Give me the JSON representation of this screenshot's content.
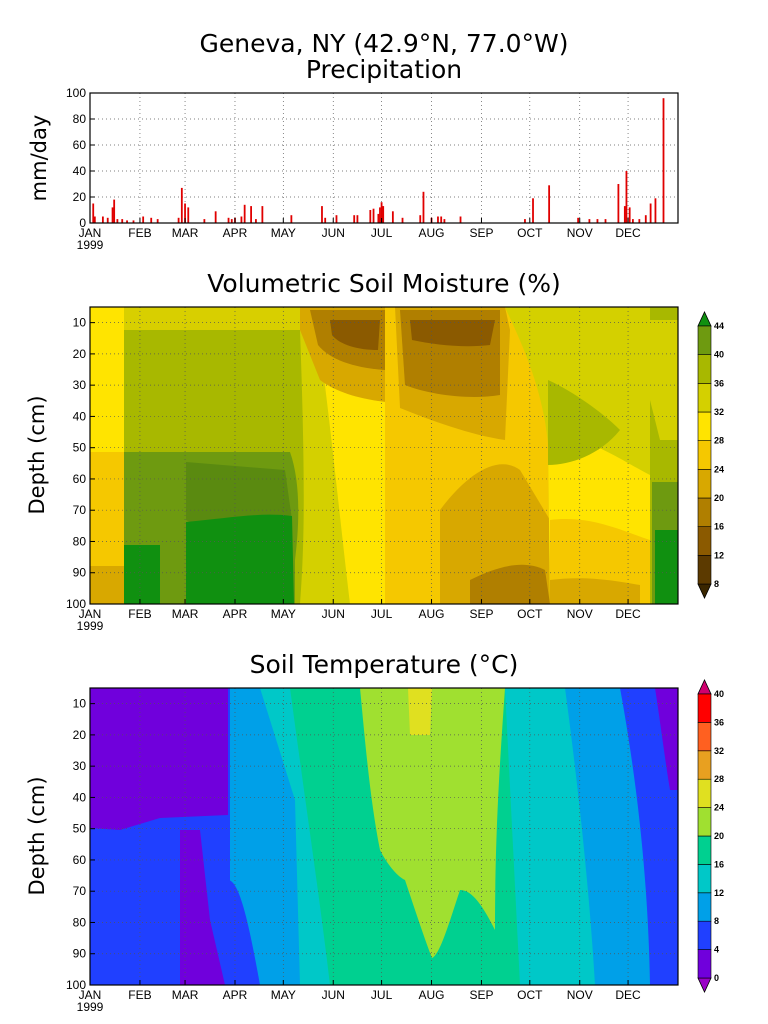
{
  "header": {
    "title_line1": "Geneva, NY  (42.9°N, 77.0°W)",
    "title_line2": "Precipitation"
  },
  "chart_data": [
    {
      "type": "bar",
      "title": "Precipitation",
      "ylabel": "mm/day",
      "ylim": [
        0,
        100
      ],
      "yticks": [
        "0",
        "20",
        "40",
        "60",
        "80",
        "100"
      ],
      "xticks": [
        "JAN",
        "FEB",
        "MAR",
        "APR",
        "MAY",
        "JUN",
        "JUL",
        "AUG",
        "SEP",
        "OCT",
        "NOV",
        "DEC"
      ],
      "year_label": "1999",
      "grid": true,
      "color": "#e00000",
      "values": [
        {
          "day": 2,
          "value": 15
        },
        {
          "day": 3,
          "value": 5
        },
        {
          "day": 8,
          "value": 5
        },
        {
          "day": 11,
          "value": 4
        },
        {
          "day": 14,
          "value": 12
        },
        {
          "day": 15,
          "value": 18
        },
        {
          "day": 17,
          "value": 3
        },
        {
          "day": 20,
          "value": 3
        },
        {
          "day": 23,
          "value": 2
        },
        {
          "day": 27,
          "value": 2
        },
        {
          "day": 33,
          "value": 5
        },
        {
          "day": 38,
          "value": 4
        },
        {
          "day": 42,
          "value": 3
        },
        {
          "day": 55,
          "value": 4
        },
        {
          "day": 57,
          "value": 27
        },
        {
          "day": 59,
          "value": 15
        },
        {
          "day": 61,
          "value": 12
        },
        {
          "day": 71,
          "value": 3
        },
        {
          "day": 78,
          "value": 9
        },
        {
          "day": 86,
          "value": 4
        },
        {
          "day": 88,
          "value": 3
        },
        {
          "day": 90,
          "value": 4
        },
        {
          "day": 94,
          "value": 5
        },
        {
          "day": 96,
          "value": 14
        },
        {
          "day": 100,
          "value": 13
        },
        {
          "day": 103,
          "value": 3
        },
        {
          "day": 107,
          "value": 13
        },
        {
          "day": 125,
          "value": 6
        },
        {
          "day": 144,
          "value": 13
        },
        {
          "day": 146,
          "value": 4
        },
        {
          "day": 153,
          "value": 6
        },
        {
          "day": 164,
          "value": 6
        },
        {
          "day": 166,
          "value": 6
        },
        {
          "day": 174,
          "value": 10
        },
        {
          "day": 176,
          "value": 11
        },
        {
          "day": 179,
          "value": 7
        },
        {
          "day": 180,
          "value": 12
        },
        {
          "day": 181,
          "value": 16
        },
        {
          "day": 182,
          "value": 13
        },
        {
          "day": 188,
          "value": 9
        },
        {
          "day": 194,
          "value": 4
        },
        {
          "day": 205,
          "value": 6
        },
        {
          "day": 207,
          "value": 24
        },
        {
          "day": 212,
          "value": 4
        },
        {
          "day": 216,
          "value": 5
        },
        {
          "day": 218,
          "value": 5
        },
        {
          "day": 220,
          "value": 3
        },
        {
          "day": 230,
          "value": 5
        },
        {
          "day": 270,
          "value": 3
        },
        {
          "day": 275,
          "value": 19
        },
        {
          "day": 285,
          "value": 29
        },
        {
          "day": 303,
          "value": 4
        },
        {
          "day": 310,
          "value": 3
        },
        {
          "day": 315,
          "value": 3
        },
        {
          "day": 320,
          "value": 3
        },
        {
          "day": 328,
          "value": 30
        },
        {
          "day": 332,
          "value": 13
        },
        {
          "day": 333,
          "value": 40
        },
        {
          "day": 335,
          "value": 12
        },
        {
          "day": 337,
          "value": 3
        },
        {
          "day": 341,
          "value": 3
        },
        {
          "day": 345,
          "value": 6
        },
        {
          "day": 348,
          "value": 15
        },
        {
          "day": 351,
          "value": 19
        },
        {
          "day": 356,
          "value": 96
        }
      ]
    },
    {
      "type": "heatmap",
      "title": "Volumetric Soil Moisture (%)",
      "ylabel": "Depth (cm)",
      "yticks": [
        "10",
        "20",
        "30",
        "40",
        "50",
        "60",
        "70",
        "80",
        "90",
        "100"
      ],
      "xticks": [
        "JAN",
        "FEB",
        "MAR",
        "APR",
        "MAY",
        "JUN",
        "JUL",
        "AUG",
        "SEP",
        "OCT",
        "NOV",
        "DEC"
      ],
      "year_label": "1999",
      "colorbar": {
        "labels": [
          "8",
          "12",
          "16",
          "20",
          "24",
          "28",
          "32",
          "36",
          "40",
          "44"
        ],
        "colors": [
          "#3a2600",
          "#5c3a00",
          "#8b5a00",
          "#b07f00",
          "#d8a800",
          "#f5c800",
          "#ffe400",
          "#d4d000",
          "#a8b800",
          "#6e9a10",
          "#109010"
        ]
      }
    },
    {
      "type": "heatmap",
      "title": "Soil Temperature (°C)",
      "ylabel": "Depth (cm)",
      "yticks": [
        "10",
        "20",
        "30",
        "40",
        "50",
        "60",
        "70",
        "80",
        "90",
        "100"
      ],
      "xticks": [
        "JAN",
        "FEB",
        "MAR",
        "APR",
        "MAY",
        "JUN",
        "JUL",
        "AUG",
        "SEP",
        "OCT",
        "NOV",
        "DEC"
      ],
      "year_label": "1999",
      "colorbar": {
        "labels": [
          "0",
          "4",
          "8",
          "12",
          "16",
          "20",
          "24",
          "28",
          "32",
          "36",
          "40"
        ],
        "colors": [
          "#9a00c8",
          "#7000dc",
          "#2040ff",
          "#00a0e8",
          "#00c8c8",
          "#00d090",
          "#a0e030",
          "#e0e020",
          "#e8a020",
          "#ff6020",
          "#ff0000",
          "#d00070"
        ]
      }
    }
  ]
}
